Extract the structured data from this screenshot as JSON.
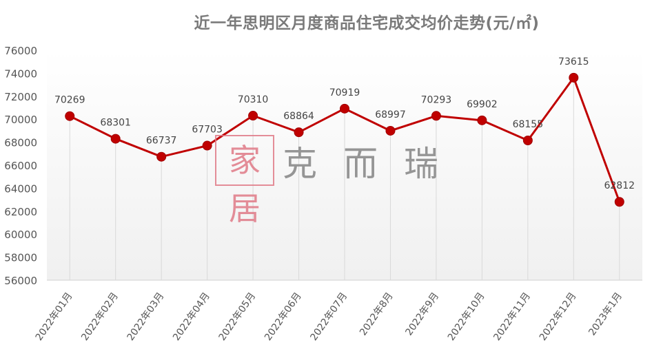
{
  "chart_data": {
    "type": "line",
    "title": "近一年思明区月度商品住宅成交均价走势(元/㎡)",
    "categories": [
      "2022年01月",
      "2022年02月",
      "2022年03月",
      "2022年04月",
      "2022年05月",
      "2022年06月",
      "2022年07月",
      "2022年8月",
      "2022年9月",
      "2022年10月",
      "2022年11月",
      "2022年12月",
      "2023年1月"
    ],
    "values": [
      70269,
      68301,
      66737,
      67703,
      70310,
      68864,
      70919,
      68997,
      70293,
      69902,
      68155,
      73615,
      62812
    ],
    "ylim": [
      56000,
      76000
    ],
    "yticks": [
      56000,
      58000,
      60000,
      62000,
      64000,
      66000,
      68000,
      70000,
      72000,
      74000,
      76000
    ],
    "xlabel": "",
    "ylabel": "",
    "grid": "vertical drop lines",
    "legend": "none",
    "line_color": "#c00000",
    "marker_color": "#c00000"
  },
  "watermark": {
    "seal": "家居",
    "text": "克而瑞"
  }
}
